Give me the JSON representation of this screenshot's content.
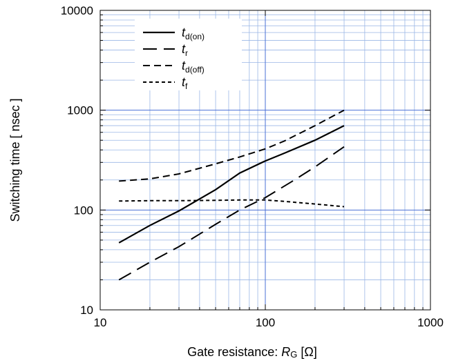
{
  "chart_data": {
    "type": "line",
    "title": "",
    "xlabel": "Gate resistance: ",
    "xlabel_var": "R",
    "xlabel_sub": "G",
    "xlabel_unit": " [Ω]",
    "ylabel": "Switching time  [ nsec ]",
    "xscale": "log",
    "yscale": "log",
    "xlim": [
      10,
      1000
    ],
    "ylim": [
      10,
      10000
    ],
    "x_ticks": [
      {
        "value": 10,
        "label": "10"
      },
      {
        "value": 100,
        "label": "100"
      },
      {
        "value": 1000,
        "label": "1000"
      }
    ],
    "y_ticks": [
      {
        "value": 10,
        "label": "10"
      },
      {
        "value": 100,
        "label": "100"
      },
      {
        "value": 1000,
        "label": "1000"
      },
      {
        "value": 10000,
        "label": "10000"
      }
    ],
    "grid": true,
    "legend_position": "top-left",
    "series": [
      {
        "name": "t",
        "sub": "d(on)",
        "dash": "solid",
        "x": [
          13,
          20,
          30,
          50,
          70,
          100,
          130,
          200,
          300
        ],
        "y": [
          47,
          70,
          98,
          160,
          235,
          310,
          370,
          500,
          700
        ]
      },
      {
        "name": "t",
        "sub": "r",
        "dash": "long",
        "x": [
          13,
          20,
          30,
          50,
          70,
          100,
          150,
          200,
          300
        ],
        "y": [
          20,
          30,
          43,
          72,
          100,
          133,
          200,
          270,
          430
        ]
      },
      {
        "name": "t",
        "sub": "d(off)",
        "dash": "medium",
        "x": [
          13,
          20,
          30,
          50,
          70,
          100,
          130,
          200,
          300
        ],
        "y": [
          195,
          205,
          230,
          290,
          340,
          410,
          490,
          700,
          1000
        ]
      },
      {
        "name": "t",
        "sub": "f",
        "dash": "short",
        "x": [
          13,
          20,
          30,
          50,
          70,
          100,
          130,
          200,
          300
        ],
        "y": [
          123,
          124,
          124,
          125,
          126,
          126,
          122,
          115,
          108
        ]
      }
    ]
  }
}
